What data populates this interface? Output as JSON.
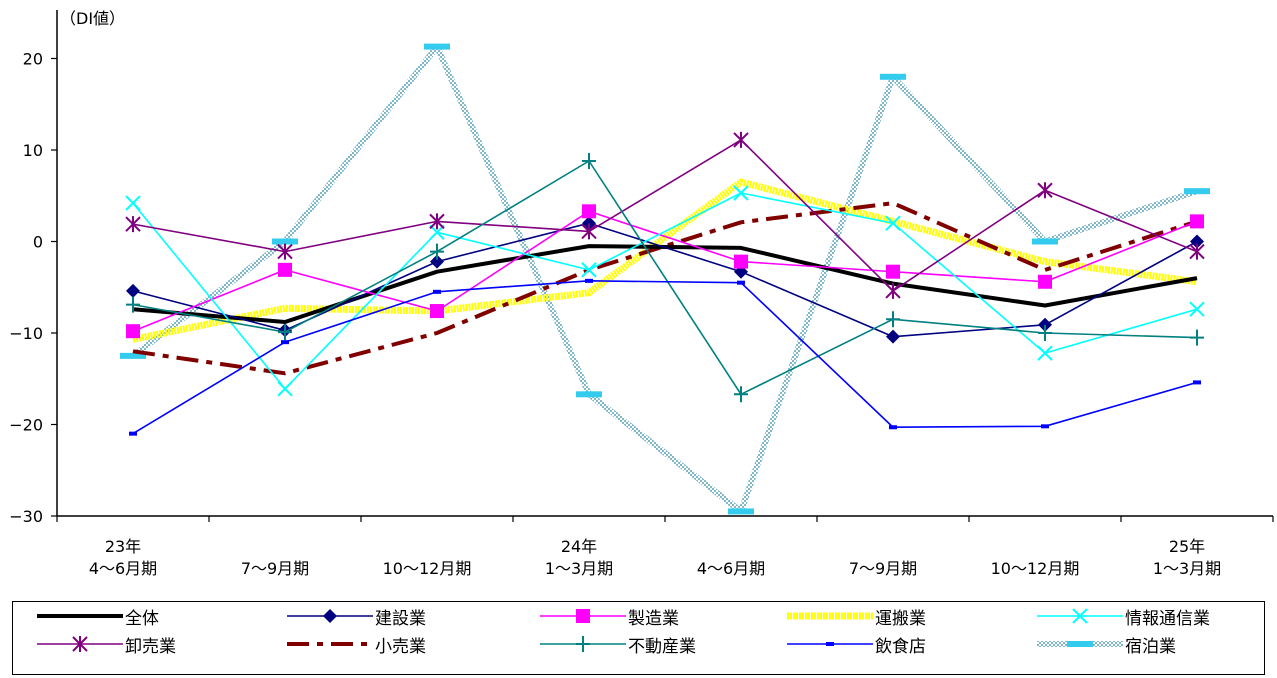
{
  "chart_data": {
    "type": "line",
    "unit_label": "（DI値）",
    "categories": [
      [
        "23年",
        "4〜6月期"
      ],
      [
        "",
        "7〜9月期"
      ],
      [
        "",
        "10〜12月期"
      ],
      [
        "24年",
        "1〜3月期"
      ],
      [
        "",
        "4〜6月期"
      ],
      [
        "",
        "7〜9月期"
      ],
      [
        "",
        "10〜12月期"
      ],
      [
        "25年",
        "1〜3月期"
      ]
    ],
    "ylim": [
      -30,
      25
    ],
    "yticks": [
      20,
      10,
      0,
      -10,
      -20,
      -30
    ],
    "ytick_labels": [
      "20",
      "10",
      "0",
      "−10",
      "−20",
      "−30"
    ],
    "series": [
      {
        "name": "全体",
        "color": "#000000",
        "style": "solid-thick",
        "marker": "none",
        "values": [
          -7.4,
          -8.8,
          -3.3,
          -0.5,
          -0.7,
          -4.6,
          -7.0,
          -4.0
        ]
      },
      {
        "name": "建設業",
        "color": "#000080",
        "style": "solid",
        "marker": "diamond",
        "values": [
          -5.4,
          -9.7,
          -2.2,
          2.0,
          -3.3,
          -10.4,
          -9.1,
          0.0
        ]
      },
      {
        "name": "製造業",
        "color": "#ff00ff",
        "style": "solid",
        "marker": "square",
        "values": [
          -9.8,
          -3.1,
          -7.6,
          3.3,
          -2.2,
          -3.3,
          -4.4,
          2.2
        ]
      },
      {
        "name": "運搬業",
        "color": "#ffff00",
        "style": "dotted-thick",
        "marker": "none",
        "values": [
          -10.7,
          -7.3,
          -7.6,
          -5.6,
          6.5,
          2.2,
          -2.2,
          -4.4
        ]
      },
      {
        "name": "情報通信業",
        "color": "#00ffff",
        "style": "solid",
        "marker": "x",
        "values": [
          4.2,
          -16.1,
          1.0,
          -3.1,
          5.3,
          2.0,
          -12.2,
          -7.4
        ]
      },
      {
        "name": "卸売業",
        "color": "#800080",
        "style": "solid",
        "marker": "asterisk",
        "values": [
          1.9,
          -1.1,
          2.2,
          1.1,
          11.1,
          -5.4,
          5.6,
          -1.1
        ]
      },
      {
        "name": "小売業",
        "color": "#800000",
        "style": "dashdot",
        "marker": "none",
        "values": [
          -12.0,
          -14.4,
          -10.0,
          -3.1,
          2.1,
          4.2,
          -3.1,
          2.2
        ]
      },
      {
        "name": "不動産業",
        "color": "#008080",
        "style": "solid",
        "marker": "plus",
        "values": [
          -6.9,
          -9.9,
          -1.1,
          8.8,
          -16.7,
          -8.5,
          -10.0,
          -10.5
        ]
      },
      {
        "name": "飲食店",
        "color": "#0000ff",
        "style": "solid",
        "marker": "dash",
        "values": [
          -21.0,
          -11.0,
          -5.5,
          -4.3,
          -4.5,
          -20.3,
          -20.2,
          -15.4
        ]
      },
      {
        "name": "宿泊業",
        "color": "#99ccdd",
        "style": "hatched-thick",
        "marker": "bar",
        "values": [
          -12.5,
          0.0,
          21.3,
          -16.7,
          -29.5,
          18.0,
          0.0,
          5.5
        ]
      }
    ]
  }
}
